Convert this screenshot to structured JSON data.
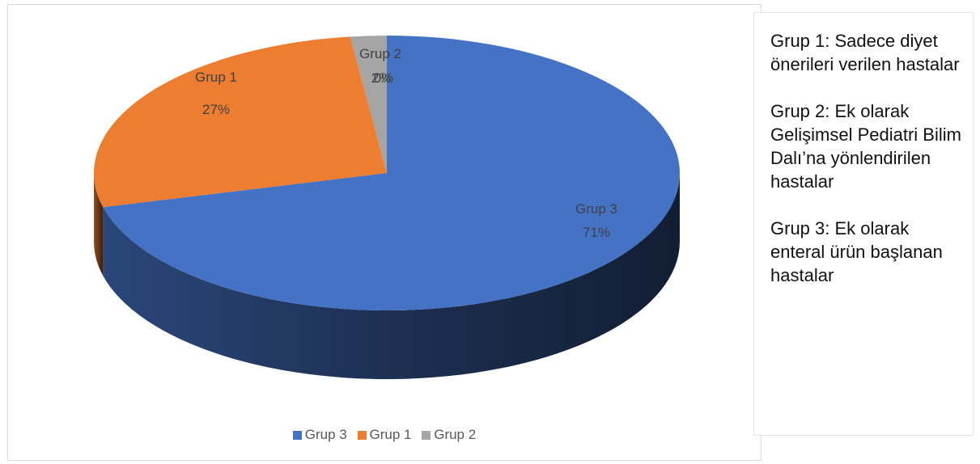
{
  "chart_data": {
    "type": "pie",
    "categories": [
      "Grup 3",
      "Grup 1",
      "Grup 2"
    ],
    "values": [
      71,
      27,
      2
    ],
    "colors": [
      "#4472C4",
      "#ED7D31",
      "#A5A5A5"
    ],
    "data_labels": [
      {
        "name": "Grup 3",
        "percent": "71%"
      },
      {
        "name": "Grup 1",
        "percent": "27%"
      },
      {
        "name": "Grup 2",
        "percent": "2%"
      },
      {
        "name": "",
        "percent": "0%"
      }
    ],
    "legend": [
      "Grup 3",
      "Grup 1",
      "Grup 2"
    ],
    "legend_placement": "bottom",
    "style": "3d"
  },
  "notes": [
    "Grup 1: Sadece diyet önerileri verilen hastalar",
    "Grup 2: Ek olarak Gelişimsel Pediatri Bilim Dalı’na yönlendirilen hastalar",
    "Grup 3: Ek olarak enteral ürün başlanan hastalar"
  ]
}
